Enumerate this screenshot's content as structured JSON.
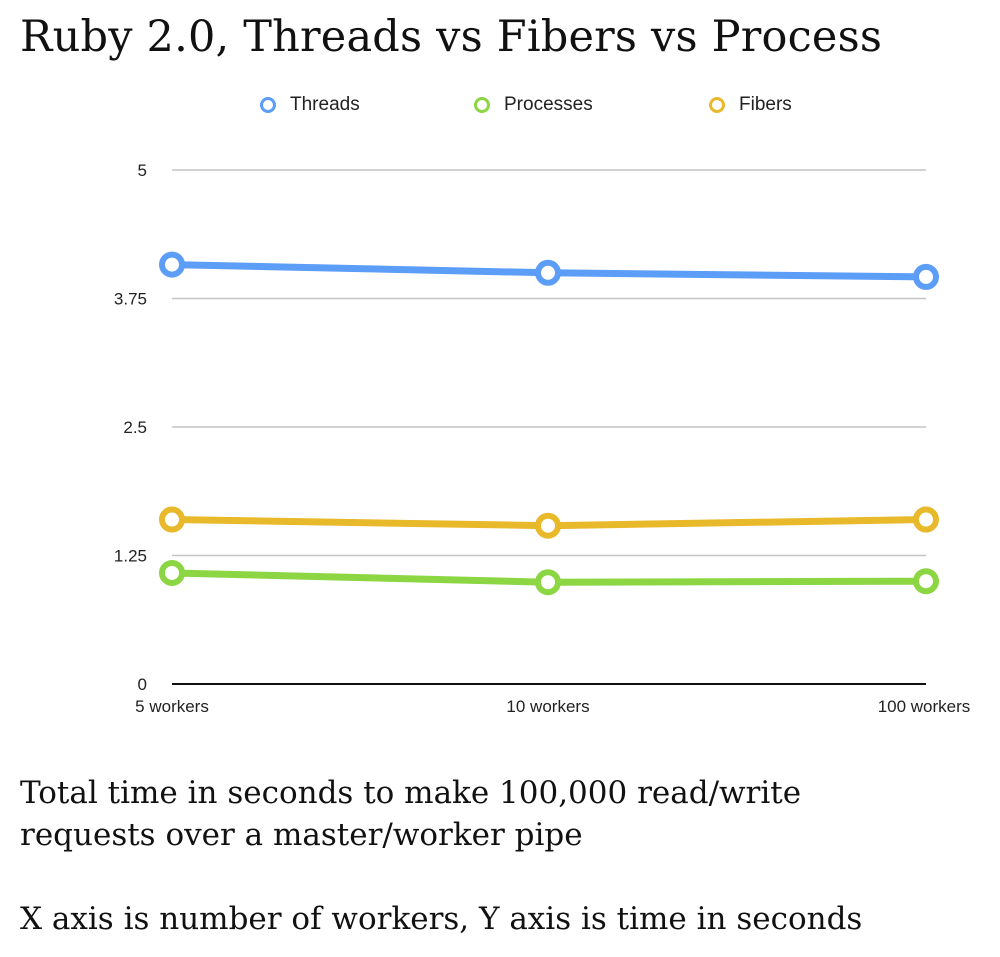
{
  "header": {
    "title": "Ruby 2.0, Threads vs Fibers vs Process"
  },
  "chart_data": {
    "type": "line",
    "categories": [
      "5 workers",
      "10 workers",
      "100 workers"
    ],
    "series": [
      {
        "name": "Threads",
        "color": "#5b9df7",
        "values": [
          4.08,
          4.0,
          3.96
        ]
      },
      {
        "name": "Processes",
        "color": "#8bd642",
        "values": [
          1.08,
          0.99,
          1.0
        ]
      },
      {
        "name": "Fibers",
        "color": "#e9b92c",
        "values": [
          1.6,
          1.54,
          1.6
        ]
      }
    ],
    "y_ticks": [
      "0",
      "1.25",
      "2.5",
      "3.75",
      "5"
    ],
    "ylim": [
      0,
      5
    ],
    "grid": true,
    "legend_position": "top"
  },
  "captions": {
    "line1": "Total time in seconds to make 100,000 read/write",
    "line2": "requests over a master/worker pipe",
    "line3": "X axis is number of workers, Y axis is time in seconds"
  }
}
